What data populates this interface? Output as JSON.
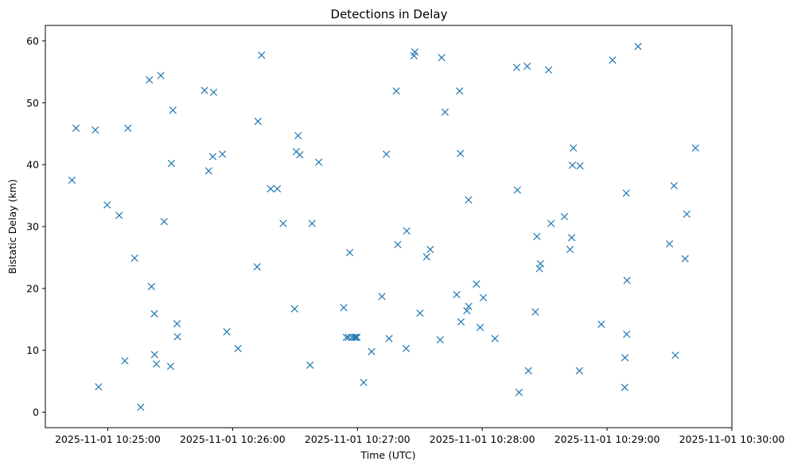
{
  "chart_data": {
    "type": "scatter",
    "title": "Detections in Delay",
    "xlabel": "Time (UTC)",
    "ylabel": "Bistatic Delay (km)",
    "xunit": "seconds after 2025-11-01 10:25:00 UTC",
    "xlim": [
      -30,
      300
    ],
    "ylim": [
      -2.5,
      62.5
    ],
    "xticks": [
      0,
      60,
      120,
      180,
      240,
      300
    ],
    "xtick_labels": [
      "2025-11-01 10:25:00",
      "2025-11-01 10:26:00",
      "2025-11-01 10:27:00",
      "2025-11-01 10:28:00",
      "2025-11-01 10:29:00",
      "2025-11-01 10:30:00"
    ],
    "yticks": [
      0,
      10,
      20,
      30,
      40,
      50,
      60
    ],
    "ytick_labels": [
      "0",
      "10",
      "20",
      "30",
      "40",
      "50",
      "60"
    ],
    "grid": false,
    "marker": "x",
    "color": "#1f77b4",
    "series": [
      {
        "name": "detections",
        "points": [
          [
            -17.2,
            37.5
          ],
          [
            -15.3,
            45.9
          ],
          [
            -6.0,
            45.6
          ],
          [
            -4.4,
            4.1
          ],
          [
            -0.3,
            33.5
          ],
          [
            5.5,
            31.8
          ],
          [
            8.2,
            8.3
          ],
          [
            9.7,
            45.9
          ],
          [
            12.9,
            24.9
          ],
          [
            15.8,
            0.8
          ],
          [
            20.0,
            53.7
          ],
          [
            21.0,
            20.3
          ],
          [
            22.4,
            15.9
          ],
          [
            22.5,
            9.3
          ],
          [
            23.4,
            7.8
          ],
          [
            25.5,
            54.4
          ],
          [
            27.1,
            30.8
          ],
          [
            30.2,
            7.4
          ],
          [
            30.6,
            40.2
          ],
          [
            31.3,
            48.8
          ],
          [
            33.3,
            14.3
          ],
          [
            33.5,
            12.2
          ],
          [
            46.5,
            52.0
          ],
          [
            48.5,
            39.0
          ],
          [
            50.5,
            41.3
          ],
          [
            50.9,
            51.7
          ],
          [
            55.1,
            41.7
          ],
          [
            57.2,
            13.0
          ],
          [
            62.6,
            10.3
          ],
          [
            71.8,
            23.5
          ],
          [
            72.2,
            47.0
          ],
          [
            73.9,
            57.7
          ],
          [
            78.3,
            36.1
          ],
          [
            81.5,
            36.1
          ],
          [
            84.3,
            30.5
          ],
          [
            89.8,
            16.7
          ],
          [
            90.6,
            42.1
          ],
          [
            91.5,
            44.7
          ],
          [
            92.3,
            41.6
          ],
          [
            97.2,
            7.6
          ],
          [
            98.2,
            30.5
          ],
          [
            101.4,
            40.4
          ],
          [
            113.4,
            16.9
          ],
          [
            114.7,
            12.1
          ],
          [
            115.7,
            12.1
          ],
          [
            116.3,
            25.8
          ],
          [
            117.4,
            12.1
          ],
          [
            118.5,
            12.1
          ],
          [
            119.2,
            12.1
          ],
          [
            119.8,
            12.1
          ],
          [
            123.0,
            4.8
          ],
          [
            126.8,
            9.8
          ],
          [
            131.8,
            18.7
          ],
          [
            133.9,
            41.7
          ],
          [
            135.2,
            11.9
          ],
          [
            138.7,
            51.9
          ],
          [
            139.4,
            27.1
          ],
          [
            143.4,
            10.3
          ],
          [
            143.7,
            29.3
          ],
          [
            147.2,
            57.6
          ],
          [
            147.6,
            58.2
          ],
          [
            150.1,
            16.0
          ],
          [
            153.3,
            25.1
          ],
          [
            155.0,
            26.3
          ],
          [
            159.8,
            11.7
          ],
          [
            160.5,
            57.3
          ],
          [
            162.1,
            48.5
          ],
          [
            167.7,
            19.0
          ],
          [
            169.1,
            51.9
          ],
          [
            169.5,
            41.8
          ],
          [
            169.8,
            14.6
          ],
          [
            172.6,
            16.4
          ],
          [
            173.4,
            34.3
          ],
          [
            173.5,
            17.1
          ],
          [
            177.2,
            20.7
          ],
          [
            179.0,
            13.7
          ],
          [
            180.5,
            18.5
          ],
          [
            186.1,
            11.9
          ],
          [
            196.6,
            55.7
          ],
          [
            196.9,
            35.9
          ],
          [
            197.7,
            3.2
          ],
          [
            201.6,
            55.9
          ],
          [
            202.2,
            6.7
          ],
          [
            205.5,
            16.2
          ],
          [
            206.3,
            28.4
          ],
          [
            207.5,
            23.2
          ],
          [
            208.0,
            24.0
          ],
          [
            211.9,
            55.3
          ],
          [
            213.1,
            30.5
          ],
          [
            219.5,
            31.6
          ],
          [
            222.2,
            26.3
          ],
          [
            223.0,
            28.2
          ],
          [
            223.3,
            39.9
          ],
          [
            223.8,
            42.7
          ],
          [
            226.7,
            6.7
          ],
          [
            227.0,
            39.8
          ],
          [
            237.2,
            14.2
          ],
          [
            242.6,
            56.9
          ],
          [
            248.5,
            4.0
          ],
          [
            248.6,
            8.8
          ],
          [
            249.2,
            35.4
          ],
          [
            249.4,
            12.6
          ],
          [
            249.6,
            21.3
          ],
          [
            254.9,
            59.1
          ],
          [
            270.0,
            27.2
          ],
          [
            272.2,
            36.6
          ],
          [
            272.8,
            9.2
          ],
          [
            277.5,
            24.8
          ],
          [
            278.3,
            32.0
          ],
          [
            282.5,
            42.7
          ]
        ]
      }
    ]
  }
}
